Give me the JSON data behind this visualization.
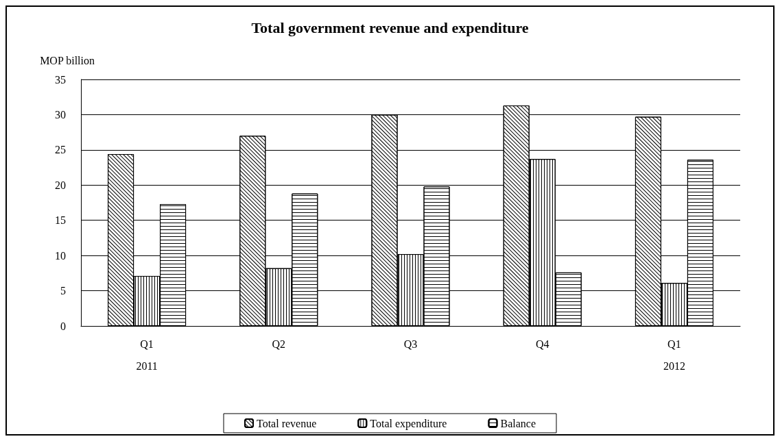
{
  "chart_data": {
    "type": "bar",
    "title": "Total government revenue and expenditure",
    "ylabel": "MOP billion",
    "categories": [
      "Q1\n\n2011",
      "Q2",
      "Q3",
      "Q4",
      "Q1\n\n2012"
    ],
    "series": [
      {
        "name": "Total revenue",
        "color": "#ffffff",
        "values": [
          24.4,
          27.0,
          30.0,
          31.3,
          29.7
        ]
      },
      {
        "name": "Total expenditure",
        "color": "#ffffff",
        "values": [
          7.1,
          8.2,
          10.2,
          23.7,
          6.1
        ]
      },
      {
        "name": "Balance",
        "color": "#ffffff",
        "values": [
          17.3,
          18.8,
          19.8,
          7.6,
          23.6
        ]
      }
    ],
    "ylim": [
      0,
      35
    ],
    "yticks": [
      0,
      5,
      10,
      15,
      20,
      25,
      30,
      35
    ],
    "grid": "y",
    "legend": "bottom"
  }
}
